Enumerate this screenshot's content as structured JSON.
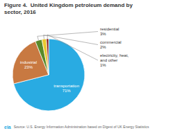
{
  "chart_data": {
    "type": "pie",
    "title": "Figure 4.  United Kingdom petroleum demand by\nsector, 2016",
    "categories": [
      "transportation",
      "industrial",
      "residential",
      "commercial",
      "electricity, heat,\nand other"
    ],
    "values": [
      71,
      23,
      3,
      2,
      1
    ],
    "value_labels": [
      "71%",
      "23%",
      "3%",
      "2%",
      "1%"
    ],
    "colors": [
      "#29ABE2",
      "#C87941",
      "#5A8A2A",
      "#E8C830",
      "#8B1A1A"
    ],
    "data_labels": true,
    "annotations": [
      "eia",
      "Source: U.S. Energy Information Administration based on Digest of UK Energy Statistics"
    ]
  }
}
